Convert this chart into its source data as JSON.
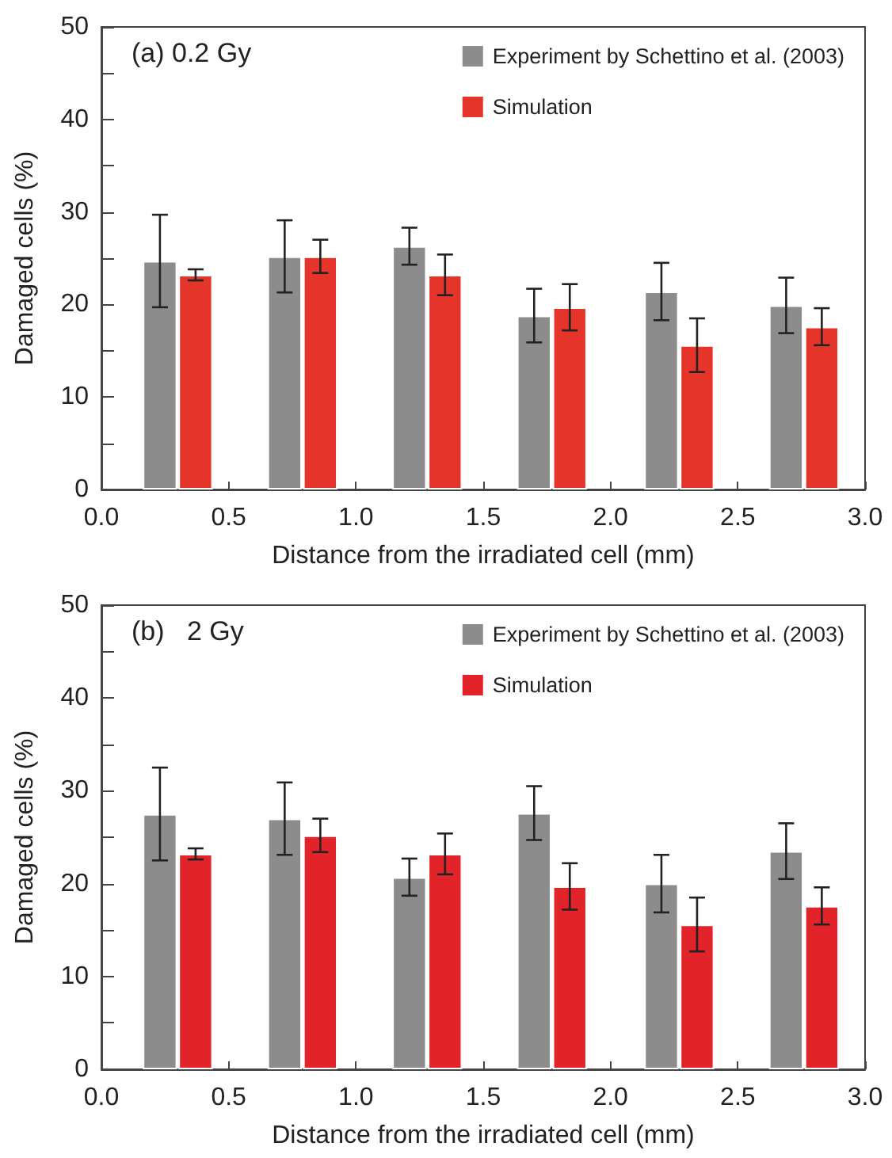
{
  "chart_data": [
    {
      "type": "bar",
      "title": "(a) 0.2 Gy",
      "xlabel": "Distance from the irradiated cell (mm)",
      "ylabel": "Damaged cells (%)",
      "series": [
        {
          "name": "Experiment by Schettino et al. (2003)",
          "color": "#8c8c8c",
          "x": [
            0.23,
            0.72,
            1.21,
            1.7,
            2.2,
            2.69
          ],
          "values": [
            24.7,
            25.2,
            26.3,
            18.8,
            21.4,
            19.9
          ],
          "errors": [
            5,
            3.9,
            2,
            2.9,
            3.1,
            3
          ]
        },
        {
          "name": "Simulation",
          "color": "#e5352b",
          "x": [
            0.37,
            0.86,
            1.35,
            1.84,
            2.34,
            2.83
          ],
          "values": [
            23.2,
            25.2,
            23.2,
            19.7,
            15.6,
            17.6
          ],
          "errors": [
            0.6,
            1.8,
            2.2,
            2.5,
            2.9,
            2
          ]
        }
      ],
      "xlim": [
        0,
        3
      ],
      "xticks": [
        {
          "value": 0,
          "label": "0.0"
        },
        {
          "value": 0.5,
          "label": "0.5"
        },
        {
          "value": 1,
          "label": "1.0"
        },
        {
          "value": 1.5,
          "label": "1.5"
        },
        {
          "value": 2,
          "label": "2.0"
        },
        {
          "value": 2.5,
          "label": "2.5"
        },
        {
          "value": 3,
          "label": "3.0"
        }
      ],
      "ylim": [
        0,
        50
      ],
      "yticks": [
        0,
        {
          "value": 5,
          "label": null
        },
        10,
        {
          "value": 15,
          "label": null
        },
        20,
        {
          "value": 25,
          "label": null
        },
        30,
        {
          "value": 35,
          "label": null
        },
        40,
        {
          "value": 45,
          "label": null
        },
        50
      ],
      "legend": "top right",
      "grid": false
    },
    {
      "type": "bar",
      "title": "(b)   2 Gy",
      "xlabel": "Distance from the irradiated cell (mm)",
      "ylabel": "Damaged cells (%)",
      "series": [
        {
          "name": "Experiment by Schettino et al. (2003)",
          "color": "#8c8c8c",
          "x": [
            0.23,
            0.72,
            1.21,
            1.7,
            2.2,
            2.69
          ],
          "values": [
            27.5,
            27,
            20.7,
            27.6,
            20,
            23.5
          ],
          "errors": [
            5,
            3.9,
            2,
            2.9,
            3.1,
            3
          ]
        },
        {
          "name": "Simulation",
          "color": "#e3232a",
          "x": [
            0.37,
            0.86,
            1.35,
            1.84,
            2.34,
            2.83
          ],
          "values": [
            23.2,
            25.2,
            23.2,
            19.7,
            15.6,
            17.6
          ],
          "errors": [
            0.6,
            1.8,
            2.2,
            2.5,
            2.9,
            2
          ]
        }
      ],
      "xlim": [
        0,
        3
      ],
      "xticks": [
        {
          "value": 0,
          "label": "0.0"
        },
        {
          "value": 0.5,
          "label": "0.5"
        },
        {
          "value": 1,
          "label": "1.0"
        },
        {
          "value": 1.5,
          "label": "1.5"
        },
        {
          "value": 2,
          "label": "2.0"
        },
        {
          "value": 2.5,
          "label": "2.5"
        },
        {
          "value": 3,
          "label": "3.0"
        }
      ],
      "ylim": [
        0,
        50
      ],
      "yticks": [
        0,
        {
          "value": 5,
          "label": null
        },
        10,
        {
          "value": 15,
          "label": null
        },
        20,
        {
          "value": 25,
          "label": null
        },
        30,
        {
          "value": 35,
          "label": null
        },
        40,
        {
          "value": 45,
          "label": null
        },
        50
      ],
      "legend": "top right",
      "grid": false
    }
  ]
}
